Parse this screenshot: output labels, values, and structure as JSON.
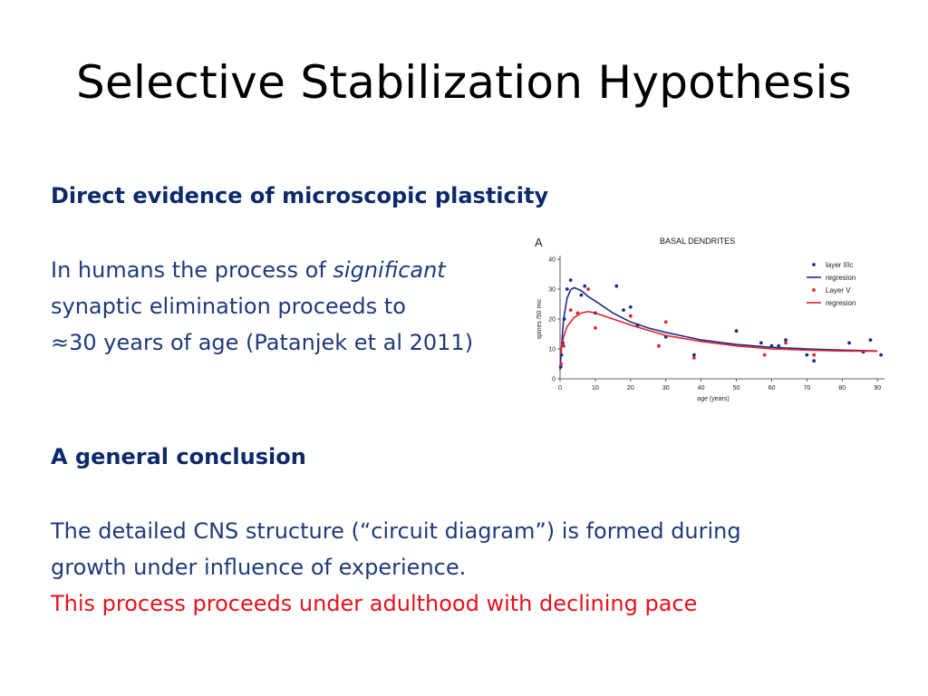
{
  "slide": {
    "title": "Selective Stabilization Hypothesis",
    "section1_heading": "Direct evidence of microscopic plasticity",
    "para1_line1_prefix": "In humans the process of ",
    "para1_line1_italic": "significant",
    "para1_line2": "synaptic elimination proceeds to",
    "para1_line3": "≈30 years of age (Patanjek et al 2011)",
    "section2_heading": "A general conclusion",
    "para2_line1": "The detailed CNS structure (“circuit diagram”) is formed during",
    "para2_line2": "growth under influence of experience.",
    "para2_line3_red": "This process proceeds under adulthood with declining pace"
  },
  "colors": {
    "blue_text": "#1f3a7a",
    "heading_blue": "#0c2a6b",
    "red_text": "#e8101a",
    "series_blue": "#1a2e8c",
    "series_red": "#e8202a"
  },
  "chart_data": {
    "type": "scatter",
    "panel_label": "A",
    "title": "BASAL DENDRITES",
    "xlabel": "age (years)",
    "ylabel": "spines /50 mic",
    "xlim": [
      0,
      92
    ],
    "ylim": [
      0,
      40
    ],
    "xticks": [
      0,
      10,
      20,
      30,
      40,
      50,
      60,
      70,
      80,
      90
    ],
    "yticks": [
      0,
      10,
      20,
      30,
      40
    ],
    "legend_position": "top-right",
    "series": [
      {
        "name": "layer IIIc",
        "kind": "points",
        "color": "#1a2e8c",
        "x": [
          0.2,
          0.4,
          0.8,
          1.2,
          2,
          3,
          6,
          7,
          10,
          16,
          18,
          20,
          22,
          30,
          38,
          50,
          57,
          60,
          62,
          64,
          70,
          72,
          82,
          86,
          88,
          91
        ],
        "y": [
          4,
          8,
          12,
          20,
          30,
          33,
          28,
          31,
          22,
          31,
          23,
          24,
          18,
          14,
          8,
          16,
          12,
          11,
          11,
          13,
          8,
          6,
          12,
          9,
          13,
          8
        ]
      },
      {
        "name": "regresion",
        "kind": "line",
        "color": "#1a2e8c",
        "x": [
          0,
          0.5,
          1,
          2,
          3,
          4,
          6,
          8,
          10,
          15,
          20,
          25,
          30,
          40,
          50,
          60,
          70,
          80,
          90
        ],
        "y": [
          3,
          12,
          20,
          27,
          29.8,
          30.5,
          29.5,
          27.5,
          26,
          22,
          19,
          17,
          15.5,
          13,
          11.5,
          10.5,
          10,
          9.6,
          9.3
        ]
      },
      {
        "name": "Layer V",
        "kind": "points",
        "color": "#e8202a",
        "x": [
          0.3,
          1,
          3,
          5,
          8,
          10,
          20,
          28,
          30,
          38,
          58,
          64,
          72
        ],
        "y": [
          5,
          11,
          23,
          22,
          30,
          17,
          21,
          11,
          19,
          7,
          8,
          12,
          8
        ]
      },
      {
        "name": "regresion",
        "kind": "line",
        "color": "#e8202a",
        "x": [
          0,
          1,
          2,
          4,
          6,
          8,
          10,
          15,
          20,
          30,
          40,
          50,
          60,
          70,
          80,
          90
        ],
        "y": [
          8,
          14,
          17.5,
          20.5,
          22,
          22.5,
          22,
          20,
          18,
          14.5,
          12.5,
          11,
          10,
          9.6,
          9.3,
          9.2
        ]
      }
    ]
  }
}
